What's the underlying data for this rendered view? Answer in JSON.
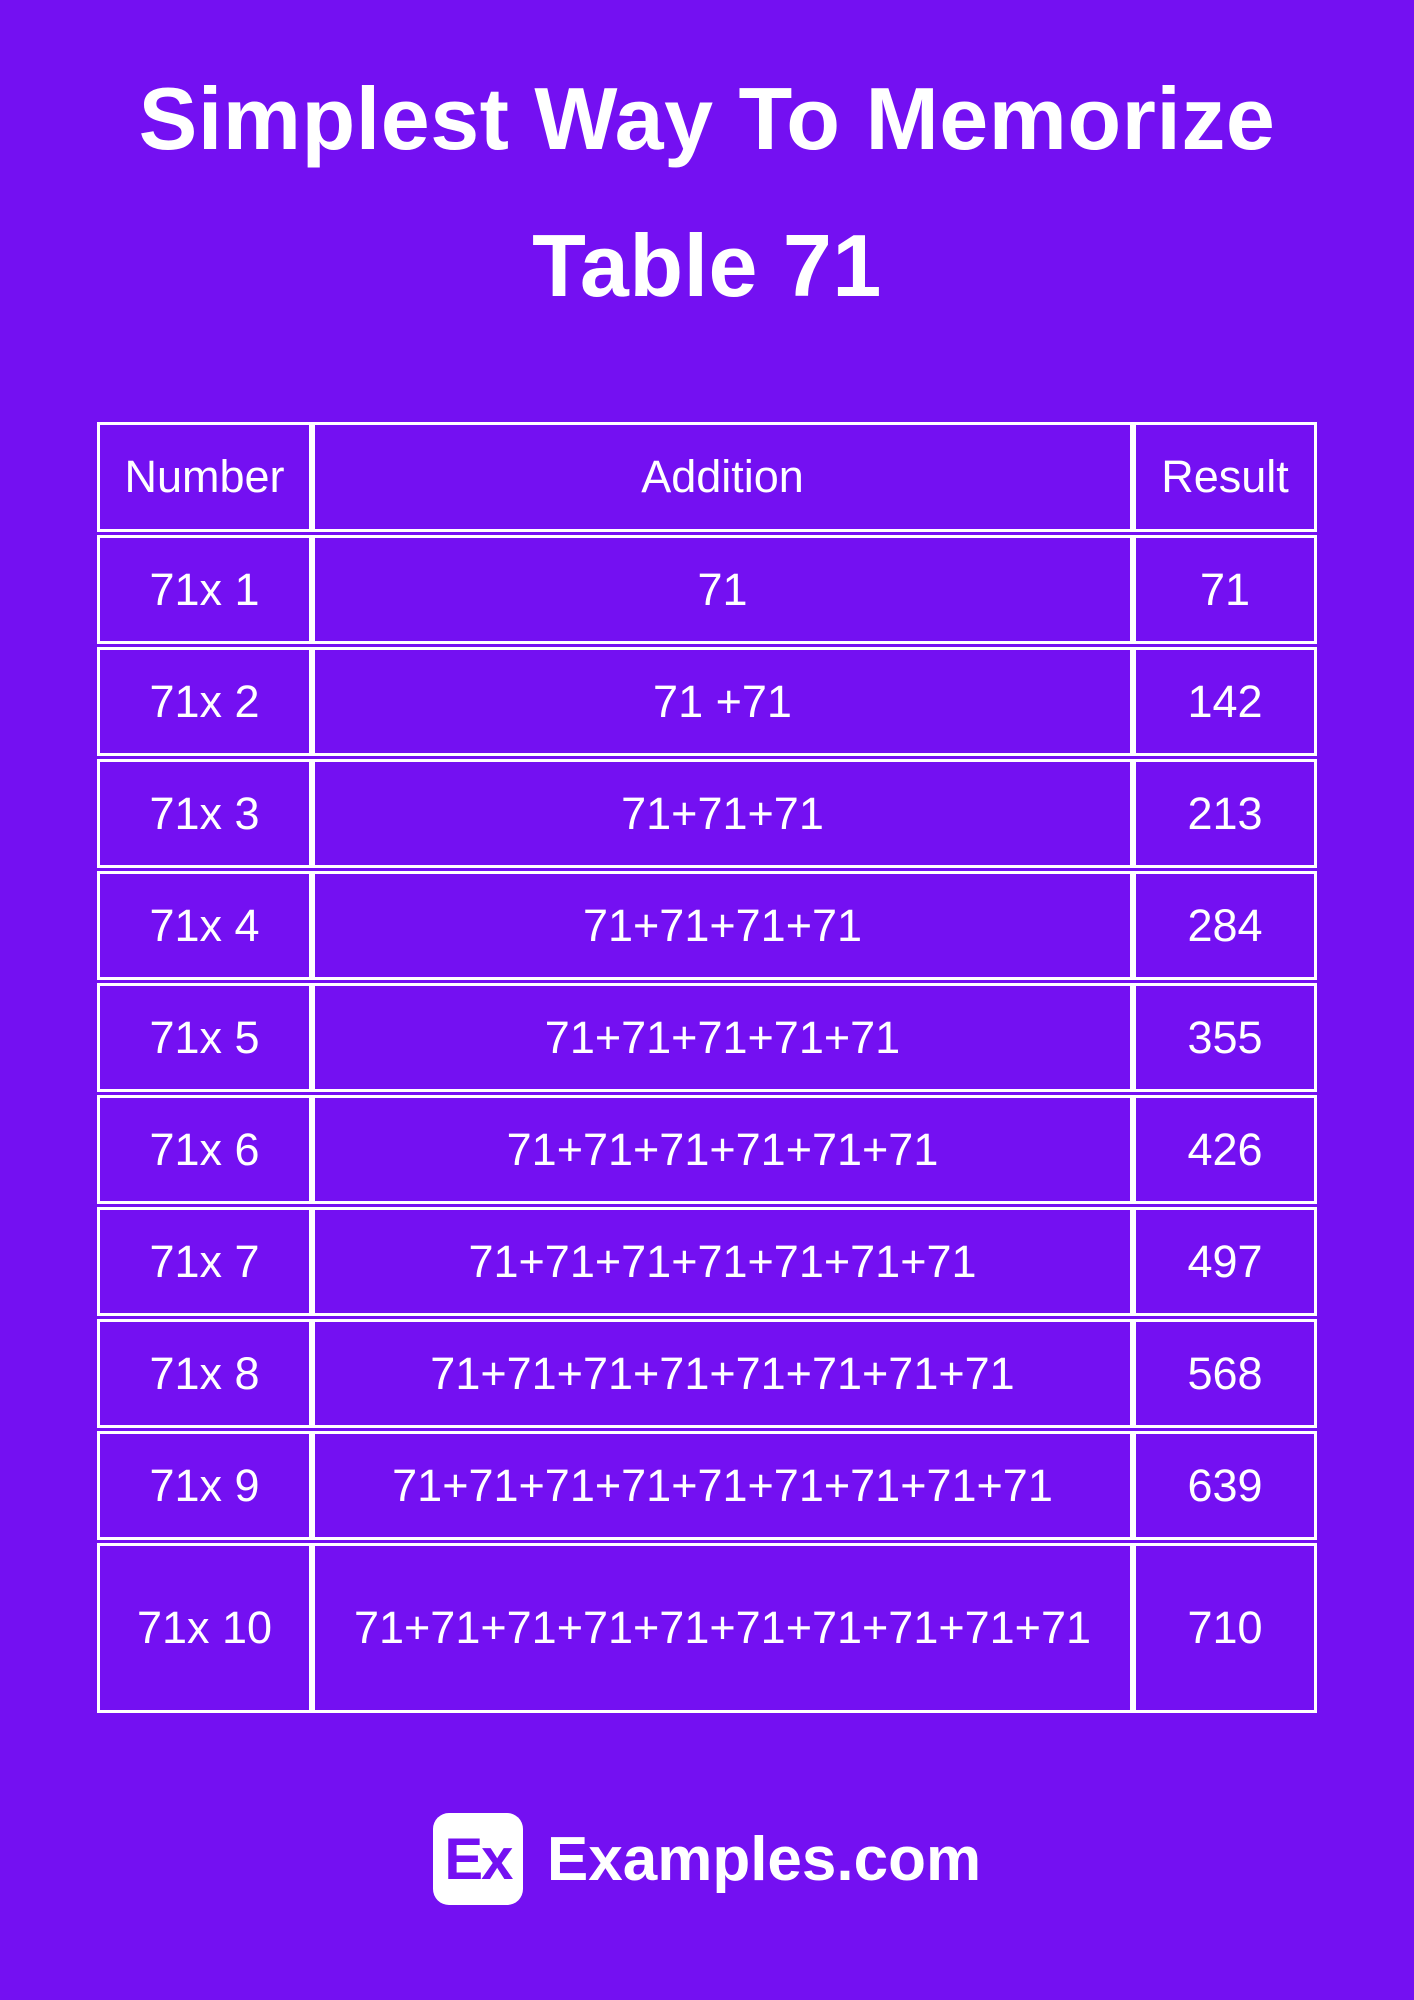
{
  "colors": {
    "background": "#7410F2",
    "text": "#FFFFFF",
    "logo_text": "#7410F2",
    "table_border": "#FFFFFF"
  },
  "title": {
    "line1": "Simplest Way To Memorize",
    "line2": "Table 71"
  },
  "table": {
    "headers": [
      "Number",
      "Addition",
      "Result"
    ],
    "rows": [
      {
        "number": "71x 1",
        "addition": "71",
        "result": "71"
      },
      {
        "number": "71x 2",
        "addition": "71 +71",
        "result": "142"
      },
      {
        "number": "71x 3",
        "addition": "71+71+71",
        "result": "213"
      },
      {
        "number": "71x 4",
        "addition": "71+71+71+71",
        "result": "284"
      },
      {
        "number": "71x 5",
        "addition": "71+71+71+71+71",
        "result": "355"
      },
      {
        "number": "71x 6",
        "addition": "71+71+71+71+71+71",
        "result": "426"
      },
      {
        "number": "71x 7",
        "addition": "71+71+71+71+71+71+71",
        "result": "497"
      },
      {
        "number": "71x 8",
        "addition": "71+71+71+71+71+71+71+71",
        "result": "568"
      },
      {
        "number": "71x 9",
        "addition": "71+71+71+71+71+71+71+71+71",
        "result": "639"
      },
      {
        "number": "71x 10",
        "addition": "71+71+71+71+71+71+71+71+71+71",
        "result": "710"
      }
    ]
  },
  "footer": {
    "logo_text": "Ex",
    "site_name": "Examples.com"
  }
}
